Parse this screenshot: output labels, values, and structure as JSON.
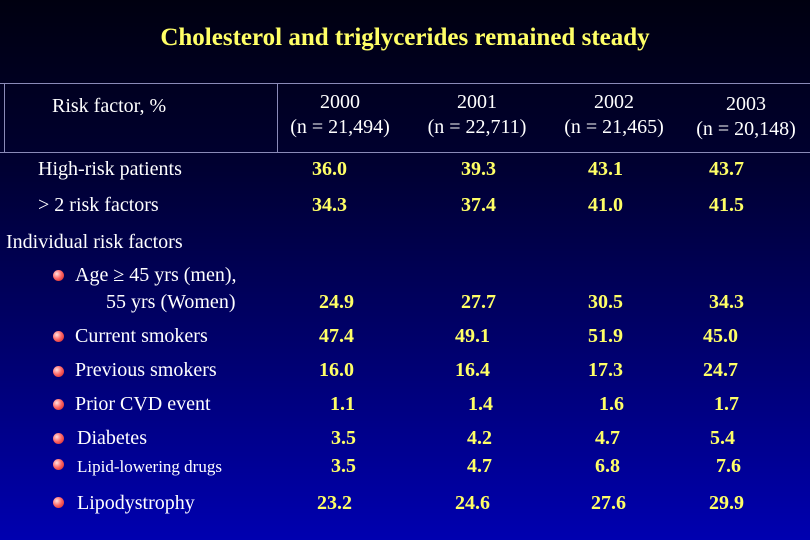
{
  "title": "Cholesterol and triglycerides remained steady",
  "header": {
    "risk_factor": "Risk factor, %",
    "years": [
      {
        "year": "2000",
        "n": "(n = 21,494)"
      },
      {
        "year": "2001",
        "n": "(n = 22,711)"
      },
      {
        "year": "2002",
        "n": "(n = 21,465)"
      },
      {
        "year": "2003",
        "n": "(n = 20,148)"
      }
    ]
  },
  "rows": [
    {
      "label": "High-risk patients",
      "values": [
        "36.0",
        "39.3",
        "43.1",
        "43.7"
      ]
    },
    {
      "label": "> 2 risk factors",
      "values": [
        "34.3",
        "37.4",
        "41.0",
        "41.5"
      ]
    }
  ],
  "section_label": "Individual risk factors",
  "individual": [
    {
      "label": "Age ≥ 45 yrs (men),",
      "label2": "55 yrs (Women)",
      "values": [
        "24.9",
        "27.7",
        "30.5",
        "34.3"
      ]
    },
    {
      "label": "Current smokers",
      "values": [
        "47.4",
        "49.1",
        "51.9",
        "45.0"
      ]
    },
    {
      "label": "Previous smokers",
      "values": [
        "16.0",
        "16.4",
        "17.3",
        "24.7"
      ]
    },
    {
      "label": "Prior CVD event",
      "values": [
        "1.1",
        "1.4",
        "1.6",
        "1.7"
      ]
    },
    {
      "label": "Diabetes",
      "values": [
        "3.5",
        "4.2",
        "4.7",
        "5.4"
      ]
    },
    {
      "label": "Lipid-lowering drugs",
      "values": [
        "3.5",
        "4.7",
        "6.8",
        "7.6"
      ]
    },
    {
      "label": "Lipodystrophy",
      "values": [
        "23.2",
        "24.6",
        "27.6",
        "29.9"
      ]
    }
  ],
  "colors": {
    "title": "#ffff66",
    "values": "#ffff66",
    "text": "#ffffff",
    "bullet": "#ff5050"
  }
}
